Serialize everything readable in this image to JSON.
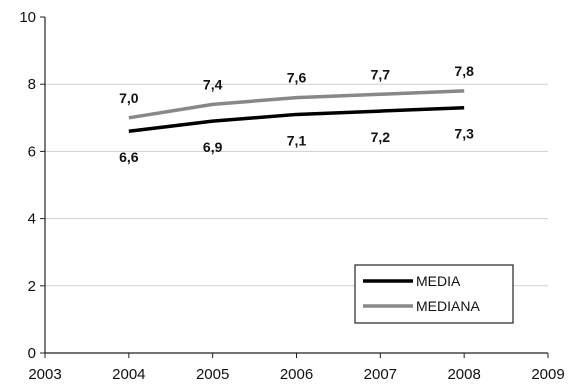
{
  "chart_data": {
    "type": "line",
    "title": "",
    "xlabel": "",
    "ylabel": "",
    "x": [
      2004,
      2005,
      2006,
      2007,
      2008
    ],
    "xlim": [
      2003,
      2009
    ],
    "ylim": [
      0,
      10
    ],
    "x_ticks": [
      "2003",
      "2004",
      "2005",
      "2006",
      "2007",
      "2008",
      "2009"
    ],
    "y_ticks": [
      "0",
      "2",
      "4",
      "6",
      "8",
      "10"
    ],
    "grid": "horizontal",
    "legend_position": "bottom-right",
    "series": [
      {
        "name": "MEDIA",
        "color": "#000000",
        "values": [
          6.6,
          6.9,
          7.1,
          7.2,
          7.3
        ],
        "labels": [
          "6,6",
          "6,9",
          "7,1",
          "7,2",
          "7,3"
        ]
      },
      {
        "name": "MEDIANA",
        "color": "#888888",
        "values": [
          7.0,
          7.4,
          7.6,
          7.7,
          7.8
        ],
        "labels": [
          "7,0",
          "7,4",
          "7,6",
          "7,7",
          "7,8"
        ]
      }
    ]
  }
}
